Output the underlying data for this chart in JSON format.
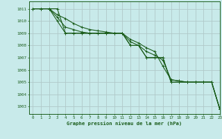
{
  "title": "Graphe pression niveau de la mer (hPa)",
  "bg_color": "#c8eaea",
  "grid_color": "#b0c8c8",
  "line_color": "#1a5c1a",
  "xlim": [
    -0.5,
    23
  ],
  "ylim": [
    1002.4,
    1011.6
  ],
  "yticks": [
    1003,
    1004,
    1005,
    1006,
    1007,
    1008,
    1009,
    1010,
    1011
  ],
  "xticks": [
    0,
    1,
    2,
    3,
    4,
    5,
    6,
    7,
    8,
    9,
    10,
    11,
    12,
    13,
    14,
    15,
    16,
    17,
    18,
    19,
    20,
    21,
    22,
    23
  ],
  "series": [
    [
      1011,
      1011,
      1011,
      1011,
      1009,
      1009,
      1009,
      1009,
      1009,
      1009,
      1009,
      1009,
      1008,
      1008,
      1007,
      1007,
      1007,
      1005,
      1005,
      1005,
      1005,
      1005,
      1005,
      1002.8
    ],
    [
      1011,
      1011,
      1011,
      1010.5,
      1010.2,
      1009.8,
      1009.5,
      1009.3,
      1009.2,
      1009.1,
      1009.0,
      1009.0,
      1008.5,
      1008.2,
      1007.8,
      1007.5,
      1006.3,
      1005.2,
      1005.1,
      1005.0,
      1005.0,
      1005.0,
      1005.0,
      1002.8
    ],
    [
      1011,
      1011,
      1011,
      1010.3,
      1009.5,
      1009.3,
      1009.1,
      1009.0,
      1009.0,
      1009.0,
      1009.0,
      1009.0,
      1008.3,
      1008.0,
      1007.5,
      1007.2,
      1006.8,
      1005.2,
      1005.1,
      1005.0,
      1005.0,
      1005.0,
      1005.0,
      1002.8
    ],
    [
      1011,
      1011,
      1011,
      1010.0,
      1009.0,
      1009.0,
      1009.0,
      1009.0,
      1009.0,
      1009.0,
      1009.0,
      1009.0,
      1008.0,
      1008.0,
      1007.0,
      1007.0,
      1007.0,
      1005.0,
      1005.0,
      1005.0,
      1005.0,
      1005.0,
      1005.0,
      1002.8
    ]
  ]
}
